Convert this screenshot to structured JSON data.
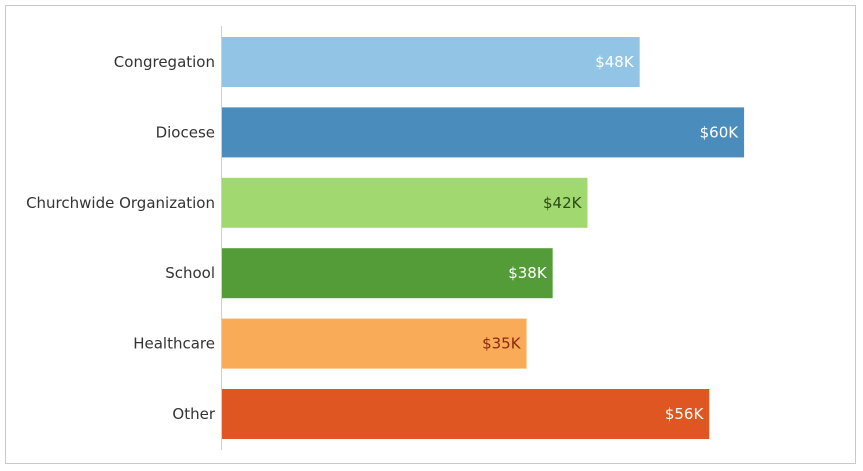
{
  "chart_data": {
    "type": "bar",
    "orientation": "horizontal",
    "title": "",
    "xlabel": "",
    "ylabel": "",
    "xlim": [
      0,
      67
    ],
    "grid": false,
    "categories": [
      "Congregation",
      "Diocese",
      "Churchwide Organization",
      "School",
      "Healthcare",
      "Other"
    ],
    "values": [
      48,
      60,
      42,
      38,
      35,
      56
    ],
    "data_labels": [
      "$48K",
      "$60K",
      "$42K",
      "$38K",
      "$35K",
      "$56K"
    ],
    "colors": [
      "#92c5e5",
      "#4a8dbd",
      "#a1d870",
      "#539c38",
      "#f9ab57",
      "#e05622"
    ],
    "label_colors": [
      "#ffffff",
      "#ffffff",
      "#2a4a14",
      "#ffffff",
      "#8a2a0c",
      "#ffffff"
    ]
  }
}
